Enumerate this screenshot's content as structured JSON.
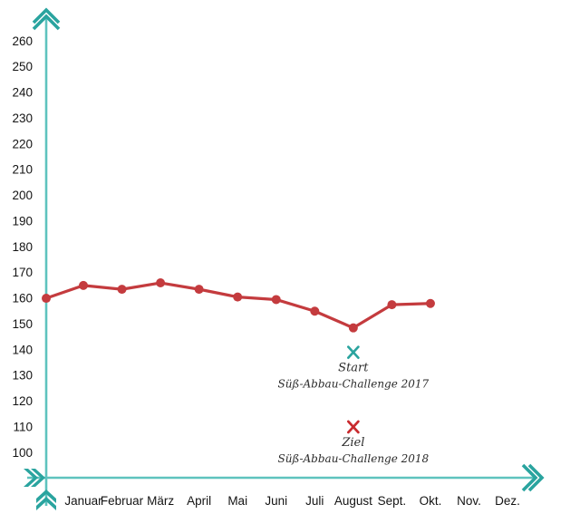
{
  "page": {
    "background": "#ffffff"
  },
  "chart_data": {
    "type": "line",
    "title": "",
    "x_axis": {
      "categories": [
        "Januar",
        "Februar",
        "März",
        "April",
        "Mai",
        "Juni",
        "Juli",
        "August",
        "Sept.",
        "Okt.",
        "Nov.",
        "Dez."
      ]
    },
    "y_axis": {
      "min": 100,
      "max": 260,
      "step": 10
    },
    "grid": false,
    "legend": false,
    "series": [
      {
        "name": "weight-line",
        "color": "#c43b3e",
        "points": [
          {
            "month": "(y-axis)",
            "value": 160
          },
          {
            "month": "Januar",
            "value": 165
          },
          {
            "month": "Februar",
            "value": 163.5
          },
          {
            "month": "März",
            "value": 166
          },
          {
            "month": "April",
            "value": 163.5
          },
          {
            "month": "Mai",
            "value": 160.5
          },
          {
            "month": "Juni",
            "value": 159.5
          },
          {
            "month": "Juli",
            "value": 155
          },
          {
            "month": "August",
            "value": 148.5
          },
          {
            "month": "Sept.",
            "value": 157.5
          },
          {
            "month": "Okt.",
            "value": 158
          }
        ]
      }
    ],
    "annotations": [
      {
        "marker": "x",
        "color": "#2ba49f",
        "month": "August",
        "value": 139,
        "label": "Start",
        "sublabel": "Süß-Abbau-Challenge 2017"
      },
      {
        "marker": "x",
        "color": "#c92a2e",
        "month": "August",
        "value": 110,
        "label": "Ziel",
        "sublabel": "Süß-Abbau-Challenge 2018"
      }
    ],
    "colors": {
      "axis": "#5ec3be",
      "arrow": "#2aa49f",
      "tick": "#1f4e57",
      "label": "#141414",
      "annotation_text": "#2b2b2b"
    }
  }
}
